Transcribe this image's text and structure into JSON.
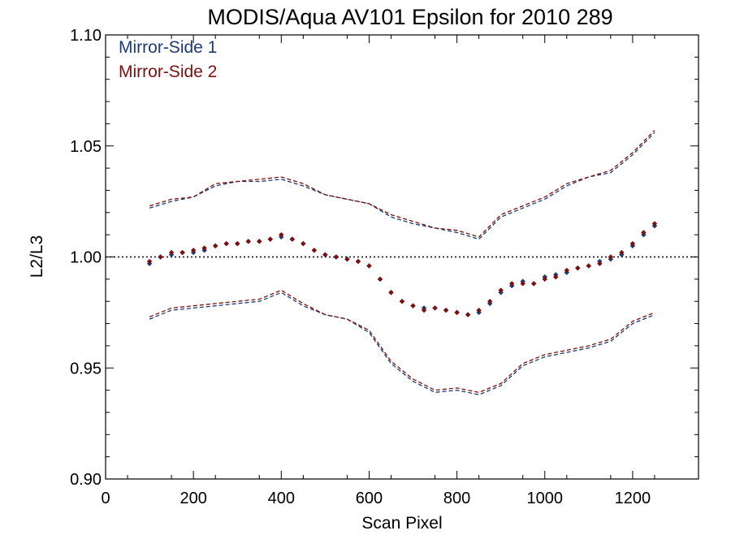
{
  "chart_data": {
    "type": "scatter",
    "title": "MODIS/Aqua AV101 Epsilon for 2010 289",
    "xlabel": "Scan Pixel",
    "ylabel": "L2/L3",
    "xlim": [
      0,
      1350
    ],
    "ylim": [
      0.9,
      1.1
    ],
    "x_ticks": [
      0,
      200,
      400,
      600,
      800,
      1000,
      1200
    ],
    "x_tick_labels": [
      "0",
      "200",
      "400",
      "600",
      "800",
      "1000",
      "1200"
    ],
    "y_ticks": [
      0.9,
      0.95,
      1.0,
      1.05,
      1.1
    ],
    "y_tick_labels": [
      "0.90",
      "0.95",
      "1.00",
      "1.05",
      "1.10"
    ],
    "reference_line": 1.0,
    "legend_position": "top-left",
    "colors": {
      "side1": "#1f3a75",
      "side2": "#7a1010"
    },
    "series": [
      {
        "name": "Mirror-Side 1",
        "color": "#1f3a75",
        "mean_points": {
          "x": [
            100,
            125,
            150,
            175,
            200,
            225,
            250,
            275,
            300,
            325,
            350,
            375,
            400,
            425,
            450,
            475,
            500,
            525,
            550,
            575,
            600,
            625,
            650,
            675,
            700,
            725,
            750,
            775,
            800,
            825,
            850,
            875,
            900,
            925,
            950,
            975,
            1000,
            1025,
            1050,
            1075,
            1100,
            1125,
            1150,
            1175,
            1200,
            1225,
            1250
          ],
          "y": [
            0.997,
            1.0,
            1.001,
            1.002,
            1.002,
            1.003,
            1.005,
            1.006,
            1.006,
            1.007,
            1.007,
            1.008,
            1.009,
            1.008,
            1.006,
            1.003,
            1.001,
            1.0,
            0.999,
            0.998,
            0.996,
            0.99,
            0.984,
            0.98,
            0.978,
            0.977,
            0.977,
            0.976,
            0.975,
            0.974,
            0.975,
            0.979,
            0.984,
            0.987,
            0.989,
            0.988,
            0.991,
            0.992,
            0.993,
            0.995,
            0.996,
            0.998,
            0.999,
            1.001,
            1.005,
            1.01,
            1.014
          ]
        },
        "upper_dashed": {
          "x": [
            100,
            150,
            200,
            250,
            300,
            350,
            400,
            450,
            500,
            550,
            600,
            650,
            700,
            750,
            800,
            850,
            900,
            950,
            1000,
            1050,
            1100,
            1150,
            1200,
            1250
          ],
          "y": [
            1.022,
            1.025,
            1.027,
            1.032,
            1.034,
            1.034,
            1.035,
            1.032,
            1.028,
            1.026,
            1.024,
            1.018,
            1.015,
            1.013,
            1.011,
            1.008,
            1.018,
            1.022,
            1.026,
            1.032,
            1.036,
            1.038,
            1.046,
            1.056
          ]
        },
        "lower_dashed": {
          "x": [
            100,
            150,
            200,
            250,
            300,
            350,
            400,
            450,
            500,
            550,
            600,
            650,
            700,
            750,
            800,
            850,
            900,
            950,
            1000,
            1050,
            1100,
            1150,
            1200,
            1250
          ],
          "y": [
            0.972,
            0.976,
            0.977,
            0.978,
            0.979,
            0.98,
            0.984,
            0.978,
            0.974,
            0.972,
            0.966,
            0.952,
            0.944,
            0.939,
            0.94,
            0.938,
            0.942,
            0.951,
            0.955,
            0.957,
            0.959,
            0.962,
            0.97,
            0.974
          ]
        }
      },
      {
        "name": "Mirror-Side 2",
        "color": "#7a1010",
        "mean_points": {
          "x": [
            100,
            125,
            150,
            175,
            200,
            225,
            250,
            275,
            300,
            325,
            350,
            375,
            400,
            425,
            450,
            475,
            500,
            525,
            550,
            575,
            600,
            625,
            650,
            675,
            700,
            725,
            750,
            775,
            800,
            825,
            850,
            875,
            900,
            925,
            950,
            975,
            1000,
            1025,
            1050,
            1075,
            1100,
            1125,
            1150,
            1175,
            1200,
            1225,
            1250
          ],
          "y": [
            0.998,
            1.0,
            1.002,
            1.002,
            1.003,
            1.004,
            1.005,
            1.006,
            1.006,
            1.007,
            1.007,
            1.008,
            1.01,
            1.008,
            1.006,
            1.003,
            1.001,
            1.0,
            0.999,
            0.998,
            0.996,
            0.99,
            0.984,
            0.98,
            0.978,
            0.976,
            0.977,
            0.976,
            0.975,
            0.974,
            0.976,
            0.98,
            0.985,
            0.988,
            0.988,
            0.988,
            0.99,
            0.991,
            0.994,
            0.995,
            0.996,
            0.997,
            1.0,
            1.002,
            1.006,
            1.011,
            1.015
          ]
        },
        "upper_dashed": {
          "x": [
            100,
            150,
            200,
            250,
            300,
            350,
            400,
            450,
            500,
            550,
            600,
            650,
            700,
            750,
            800,
            850,
            900,
            950,
            1000,
            1050,
            1100,
            1150,
            1200,
            1250
          ],
          "y": [
            1.023,
            1.026,
            1.027,
            1.033,
            1.034,
            1.035,
            1.036,
            1.033,
            1.028,
            1.026,
            1.024,
            1.019,
            1.016,
            1.013,
            1.012,
            1.009,
            1.019,
            1.023,
            1.027,
            1.033,
            1.036,
            1.039,
            1.047,
            1.057
          ]
        },
        "lower_dashed": {
          "x": [
            100,
            150,
            200,
            250,
            300,
            350,
            400,
            450,
            500,
            550,
            600,
            650,
            700,
            750,
            800,
            850,
            900,
            950,
            1000,
            1050,
            1100,
            1150,
            1200,
            1250
          ],
          "y": [
            0.973,
            0.977,
            0.978,
            0.979,
            0.98,
            0.981,
            0.985,
            0.979,
            0.974,
            0.972,
            0.967,
            0.953,
            0.945,
            0.94,
            0.941,
            0.939,
            0.943,
            0.952,
            0.956,
            0.958,
            0.96,
            0.963,
            0.971,
            0.975
          ]
        }
      }
    ]
  }
}
